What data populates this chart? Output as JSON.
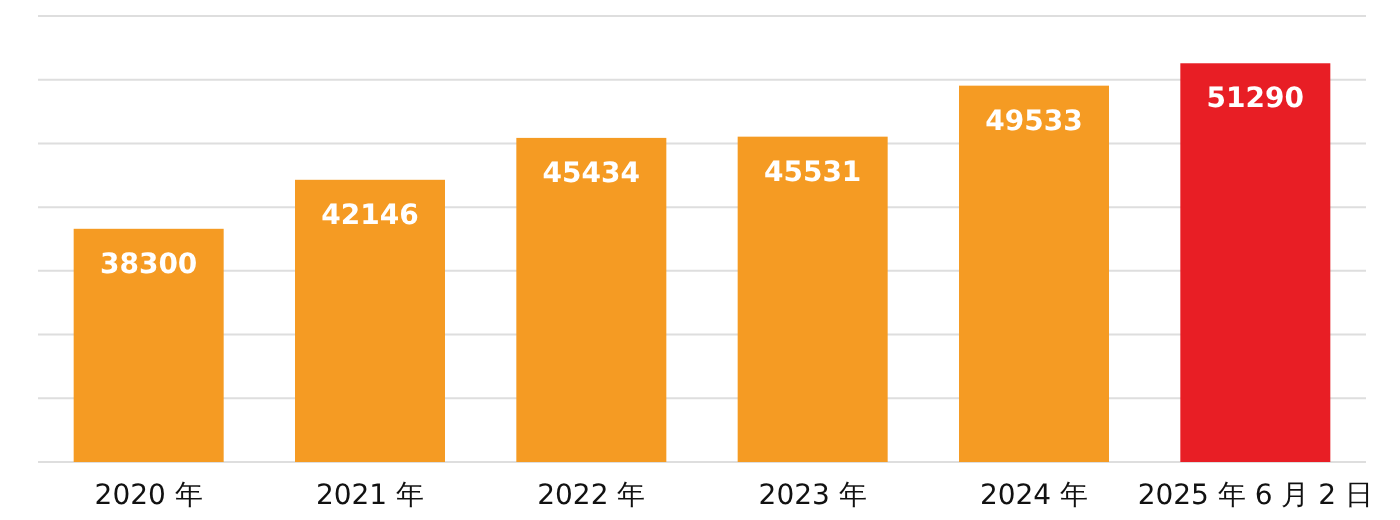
{
  "chart_data": {
    "type": "bar",
    "categories": [
      "2020 年",
      "2021 年",
      "2022 年",
      "2023 年",
      "2024 年",
      "2025 年 6 月 2 日"
    ],
    "values": [
      38300,
      42146,
      45434,
      45531,
      49533,
      51290
    ],
    "colors": [
      "#f59b23",
      "#f59b23",
      "#f59b23",
      "#f59b23",
      "#f59b23",
      "#e81e25"
    ],
    "ylim": [
      20000,
      55000
    ],
    "yticks": [
      {
        "value": 20000,
        "label": null
      },
      {
        "value": 25000,
        "label": null
      },
      {
        "value": 30000,
        "label": null
      },
      {
        "value": 35000,
        "label": null
      },
      {
        "value": 40000,
        "label": null
      },
      {
        "value": 45000,
        "label": null
      },
      {
        "value": 50000,
        "label": null
      },
      {
        "value": 55000,
        "label": null
      }
    ],
    "grid": "y",
    "tick_labels": "x",
    "data_labels": true
  }
}
